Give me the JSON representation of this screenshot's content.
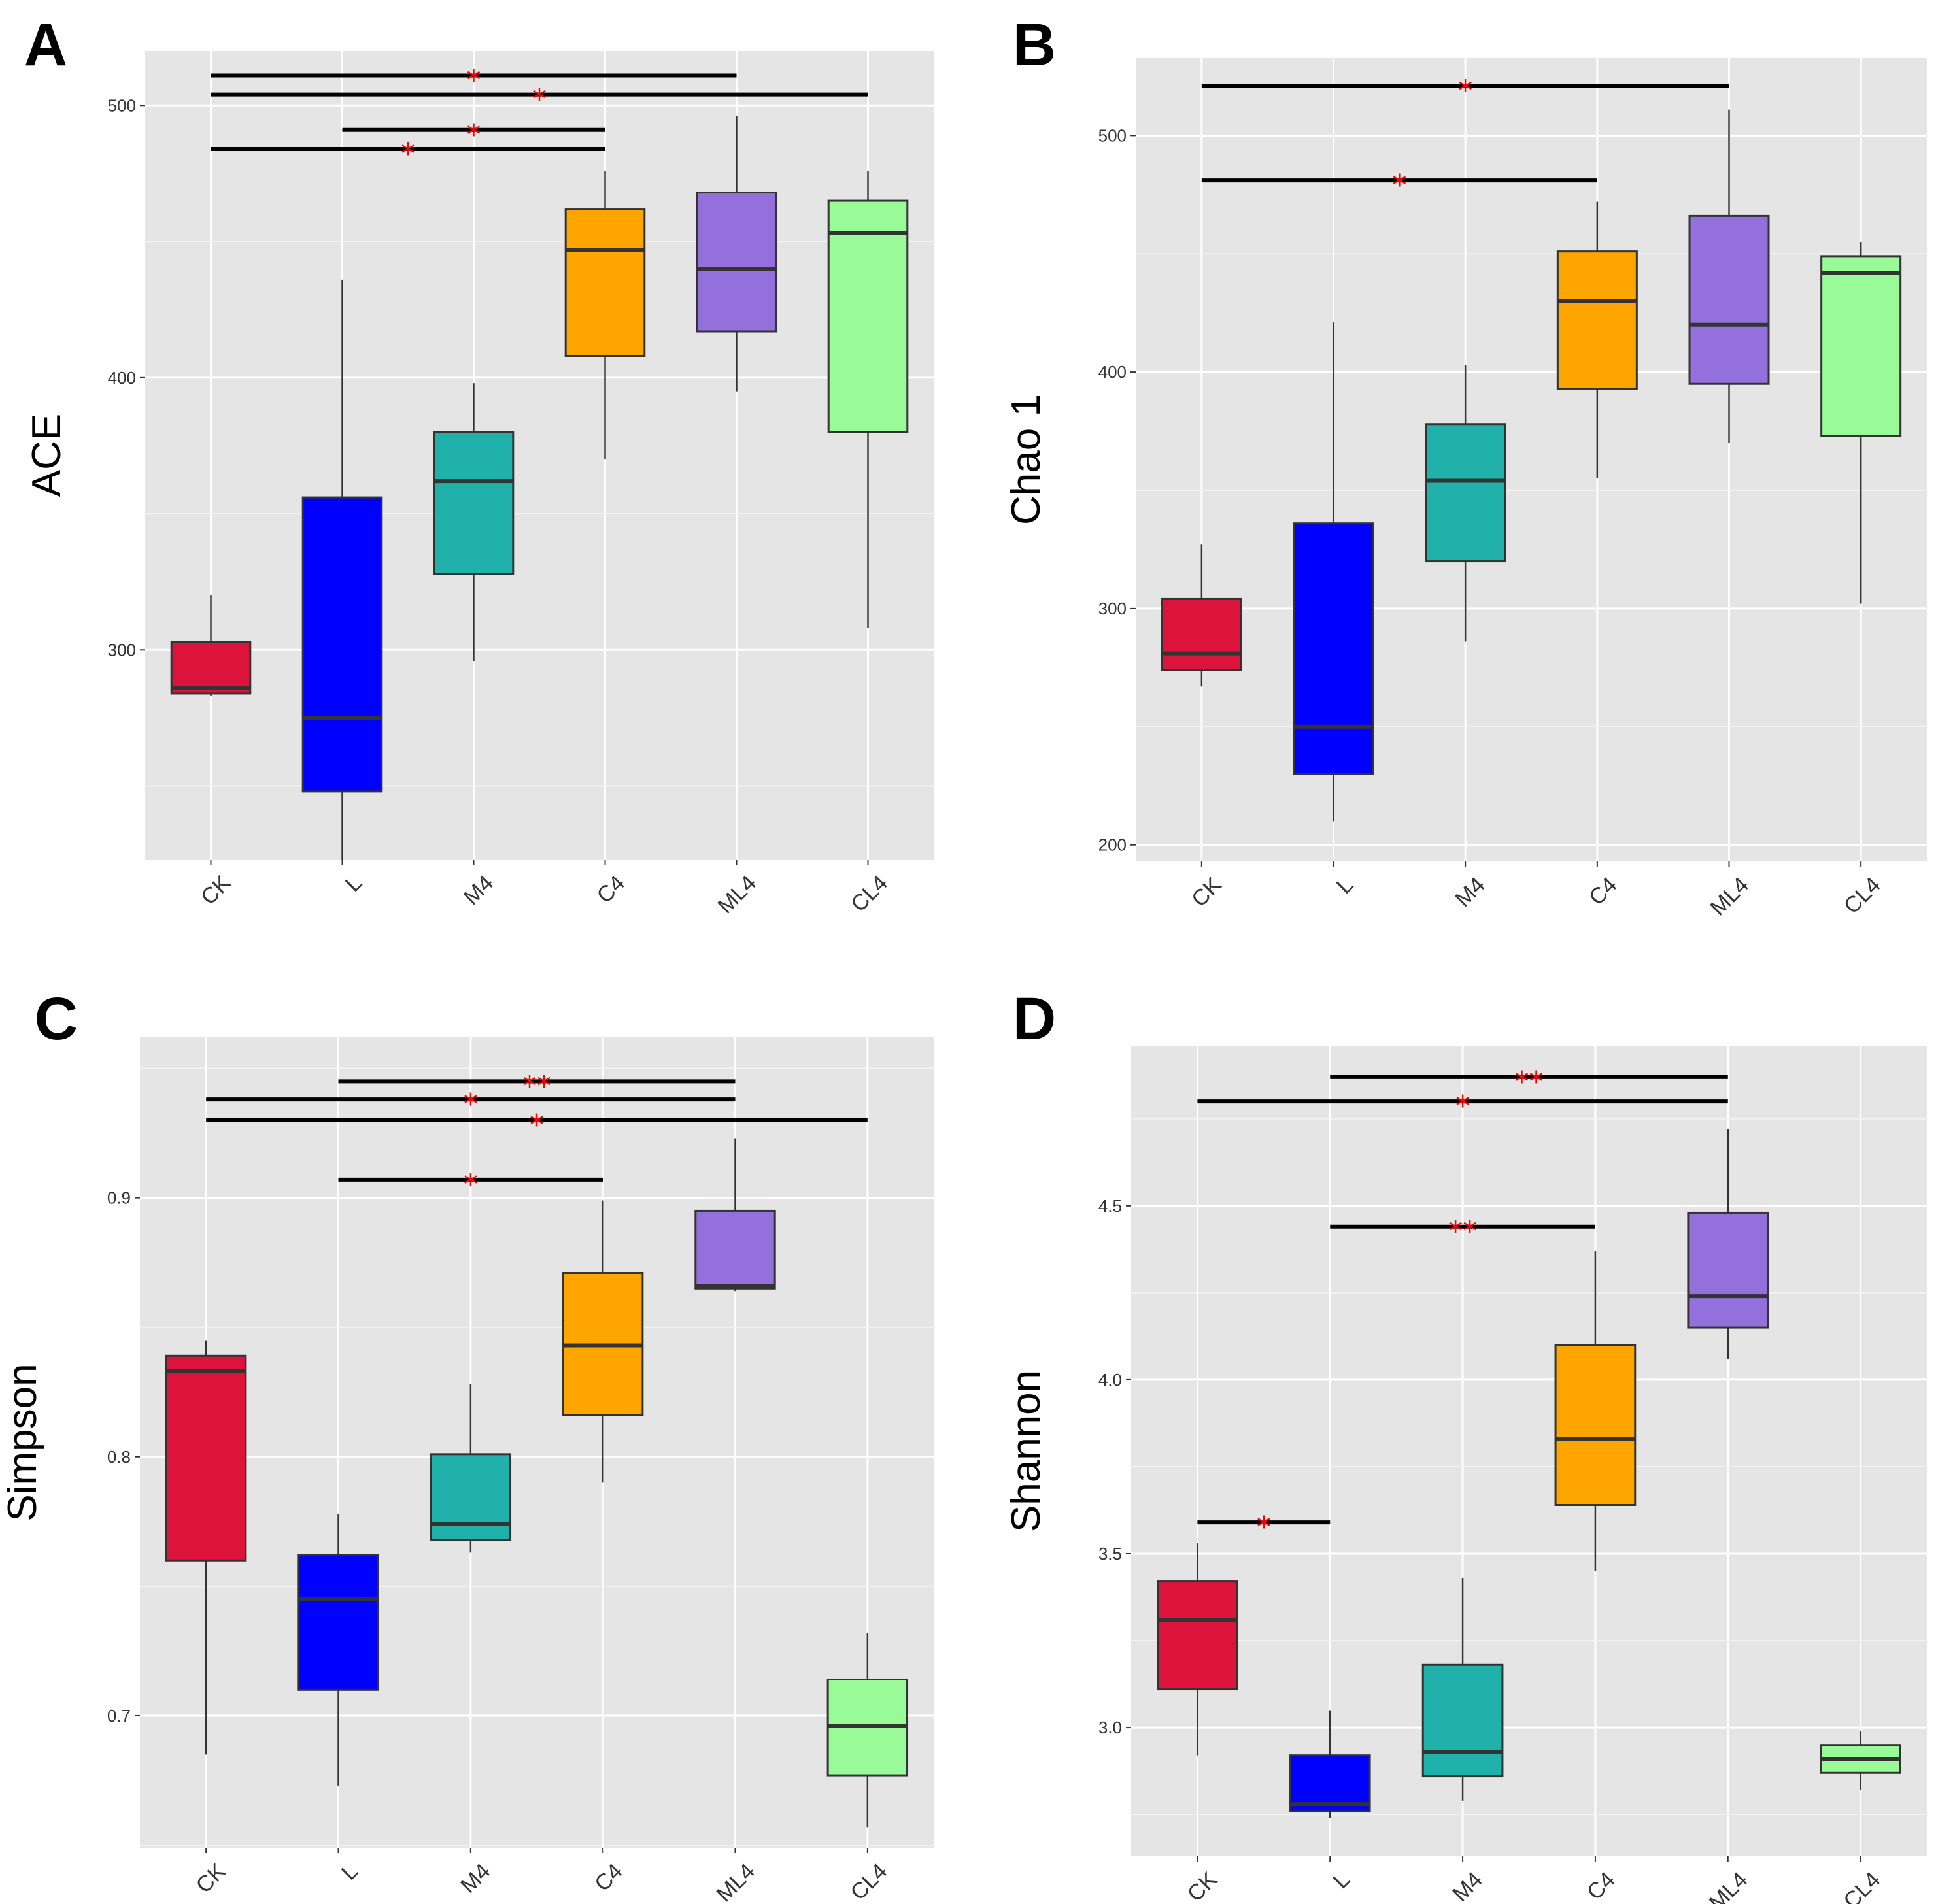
{
  "chart_data": [
    {
      "type": "box",
      "panel": "A",
      "title": "",
      "xlabel": "",
      "ylabel": "ACE",
      "ylim": [
        223,
        520
      ],
      "yticks": [
        300,
        400,
        500
      ],
      "categories": [
        "CK",
        "L",
        "M4",
        "C4",
        "ML4",
        "CL4"
      ],
      "colors": [
        "#dc143c",
        "#0000ff",
        "#20b2aa",
        "#ffa500",
        "#9370db",
        "#98fb98"
      ],
      "boxes": [
        {
          "min": 283,
          "q1": 284,
          "median": 286,
          "q3": 303,
          "max": 320
        },
        {
          "min": 223,
          "q1": 248,
          "median": 275,
          "q3": 356,
          "max": 436
        },
        {
          "min": 296,
          "q1": 328,
          "median": 362,
          "q3": 380,
          "max": 398
        },
        {
          "min": 370,
          "q1": 408,
          "median": 447,
          "q3": 462,
          "max": 476
        },
        {
          "min": 395,
          "q1": 417,
          "median": 440,
          "q3": 468,
          "max": 496
        },
        {
          "min": 308,
          "q1": 380,
          "median": 453,
          "q3": 465,
          "max": 476
        }
      ],
      "significance": [
        {
          "from": 0,
          "to": 4,
          "y": 511,
          "label": "*"
        },
        {
          "from": 0,
          "to": 5,
          "y": 504,
          "label": "*"
        },
        {
          "from": 1,
          "to": 3,
          "y": 491,
          "label": "*"
        },
        {
          "from": 0,
          "to": 3,
          "y": 484,
          "label": "*"
        }
      ]
    },
    {
      "type": "box",
      "panel": "B",
      "title": "",
      "xlabel": "",
      "ylabel": "Chao 1",
      "ylim": [
        193,
        533
      ],
      "yticks": [
        200,
        300,
        400,
        500
      ],
      "categories": [
        "CK",
        "L",
        "M4",
        "C4",
        "ML4",
        "CL4"
      ],
      "colors": [
        "#dc143c",
        "#0000ff",
        "#20b2aa",
        "#ffa500",
        "#9370db",
        "#98fb98"
      ],
      "boxes": [
        {
          "min": 267,
          "q1": 274,
          "median": 281,
          "q3": 304,
          "max": 327
        },
        {
          "min": 210,
          "q1": 230,
          "median": 250,
          "q3": 336,
          "max": 421
        },
        {
          "min": 286,
          "q1": 320,
          "median": 354,
          "q3": 378,
          "max": 403
        },
        {
          "min": 355,
          "q1": 393,
          "median": 430,
          "q3": 451,
          "max": 472
        },
        {
          "min": 370,
          "q1": 395,
          "median": 420,
          "q3": 466,
          "max": 511
        },
        {
          "min": 302,
          "q1": 373,
          "median": 442,
          "q3": 449,
          "max": 455
        }
      ],
      "significance": [
        {
          "from": 0,
          "to": 4,
          "y": 521,
          "label": "*"
        },
        {
          "from": 0,
          "to": 3,
          "y": 481,
          "label": "*"
        }
      ]
    },
    {
      "type": "box",
      "panel": "C",
      "title": "",
      "xlabel": "",
      "ylabel": "Simpson",
      "ylim": [
        0.649,
        0.962
      ],
      "yticks": [
        0.7,
        0.8,
        0.9
      ],
      "categories": [
        "CK",
        "L",
        "M4",
        "C4",
        "ML4",
        "CL4"
      ],
      "colors": [
        "#dc143c",
        "#0000ff",
        "#20b2aa",
        "#ffa500",
        "#9370db",
        "#98fb98"
      ],
      "boxes": [
        {
          "min": 0.685,
          "q1": 0.76,
          "median": 0.833,
          "q3": 0.839,
          "max": 0.845
        },
        {
          "min": 0.673,
          "q1": 0.71,
          "median": 0.745,
          "q3": 0.762,
          "max": 0.778
        },
        {
          "min": 0.763,
          "q1": 0.768,
          "median": 0.774,
          "q3": 0.801,
          "max": 0.828
        },
        {
          "min": 0.79,
          "q1": 0.816,
          "median": 0.843,
          "q3": 0.871,
          "max": 0.899
        },
        {
          "min": 0.864,
          "q1": 0.865,
          "median": 0.866,
          "q3": 0.895,
          "max": 0.923
        },
        {
          "min": 0.657,
          "q1": 0.677,
          "median": 0.696,
          "q3": 0.714,
          "max": 0.732
        }
      ],
      "significance": [
        {
          "from": 1,
          "to": 4,
          "y": 0.945,
          "label": "**"
        },
        {
          "from": 0,
          "to": 4,
          "y": 0.938,
          "label": "*"
        },
        {
          "from": 0,
          "to": 5,
          "y": 0.93,
          "label": "*"
        },
        {
          "from": 1,
          "to": 3,
          "y": 0.907,
          "label": "*"
        }
      ]
    },
    {
      "type": "box",
      "panel": "D",
      "title": "",
      "xlabel": "",
      "ylabel": "Shannon",
      "ylim": [
        2.63,
        4.96
      ],
      "yticks": [
        3.0,
        3.5,
        4.0,
        4.5
      ],
      "yticklabels": [
        "3.0",
        "3.5",
        "4.0",
        "4.5"
      ],
      "categories": [
        "CK",
        "L",
        "M4",
        "C4",
        "ML4",
        "CL4"
      ],
      "colors": [
        "#dc143c",
        "#0000ff",
        "#20b2aa",
        "#ffa500",
        "#9370db",
        "#98fb98"
      ],
      "boxes": [
        {
          "min": 2.92,
          "q1": 3.11,
          "median": 3.31,
          "q3": 3.42,
          "max": 3.53
        },
        {
          "min": 2.74,
          "q1": 2.76,
          "median": 2.78,
          "q3": 2.92,
          "max": 3.05
        },
        {
          "min": 2.79,
          "q1": 2.86,
          "median": 2.93,
          "q3": 3.18,
          "max": 3.43
        },
        {
          "min": 3.45,
          "q1": 3.64,
          "median": 3.83,
          "q3": 4.1,
          "max": 4.37
        },
        {
          "min": 4.06,
          "q1": 4.15,
          "median": 4.24,
          "q3": 4.48,
          "max": 4.72
        },
        {
          "min": 2.82,
          "q1": 2.87,
          "median": 2.91,
          "q3": 2.95,
          "max": 2.99
        }
      ],
      "significance": [
        {
          "from": 1,
          "to": 4,
          "y": 4.87,
          "label": "**"
        },
        {
          "from": 0,
          "to": 4,
          "y": 4.8,
          "label": "*"
        },
        {
          "from": 1,
          "to": 3,
          "y": 4.44,
          "label": "**"
        },
        {
          "from": 0,
          "to": 1,
          "y": 3.59,
          "label": "*"
        }
      ]
    }
  ]
}
